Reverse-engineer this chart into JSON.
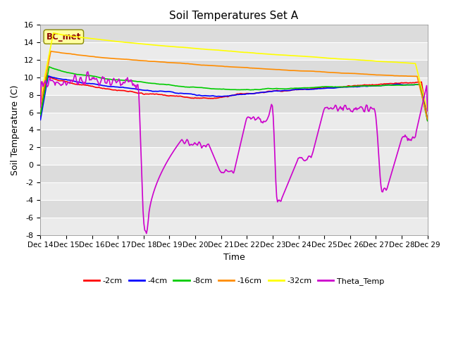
{
  "title": "Soil Temperatures Set A",
  "xlabel": "Time",
  "ylabel": "Soil Temperature (C)",
  "ylim": [
    -8,
    16
  ],
  "yticks": [
    -8,
    -6,
    -4,
    -2,
    0,
    2,
    4,
    6,
    8,
    10,
    12,
    14,
    16
  ],
  "xtick_labels": [
    "Dec 14",
    "Dec 15",
    "Dec 16",
    "Dec 17",
    "Dec 18",
    "Dec 19",
    "Dec 20",
    "Dec 21",
    "Dec 22",
    "Dec 23",
    "Dec 24",
    "Dec 25",
    "Dec 26",
    "Dec 27",
    "Dec 28",
    "Dec 29"
  ],
  "annotation_text": "BC_met",
  "annotation_color": "#8B0000",
  "plot_bg_color": "#DCDCDC",
  "fig_bg_color": "#FFFFFF",
  "legend_entries": [
    "-2cm",
    "-4cm",
    "-8cm",
    "-16cm",
    "-32cm",
    "Theta_Temp"
  ],
  "line_colors": [
    "#FF0000",
    "#0000FF",
    "#00CC00",
    "#FF8C00",
    "#FFFF00",
    "#CC00CC"
  ],
  "line_width": 1.2
}
